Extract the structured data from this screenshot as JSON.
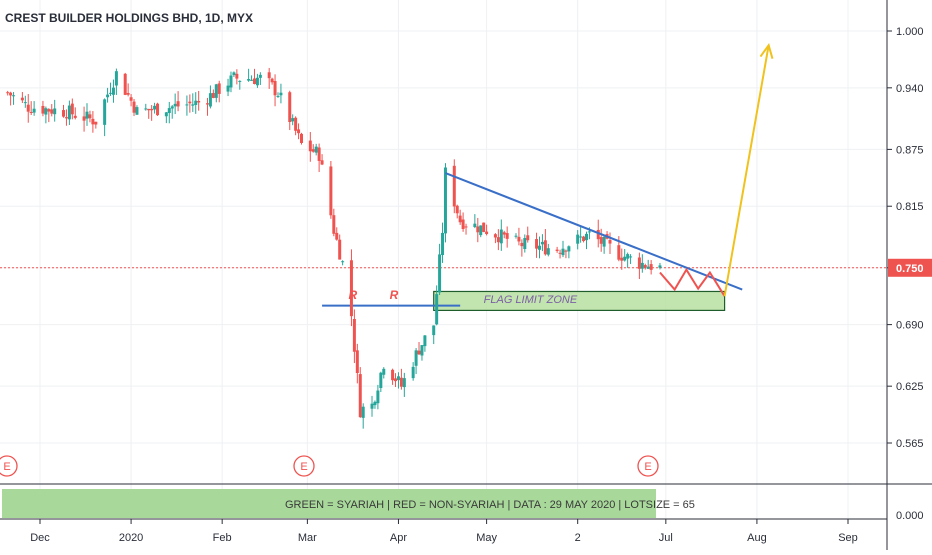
{
  "title": "CREST BUILDER HOLDINGS BHD, 1D, MYX",
  "price_axis": {
    "ticks": [
      "1.000",
      "0.940",
      "0.875",
      "0.815",
      "0.750",
      "0.690",
      "0.625",
      "0.565"
    ],
    "current_price": "0.750",
    "lower_pane_tick": "0.000"
  },
  "time_axis": {
    "ticks": [
      "Dec",
      "2020",
      "Feb",
      "Mar",
      "Apr",
      "May",
      "2",
      "Jul",
      "Aug",
      "Sep"
    ]
  },
  "annotations": {
    "flag_zone_label": "FLAG LIMIT ZONE",
    "r_markers": [
      "R",
      "R"
    ],
    "earnings_markers": [
      "E",
      "E",
      "E"
    ]
  },
  "legend_bar": {
    "text": "GREEN = SYARIAH  |  RED = NON-SYARIAH  | DATA : 29 MAY 2020  |  LOTSIZE = 65"
  },
  "colors": {
    "up": "#26a69a",
    "down": "#ef5350",
    "trendline": "#3a6fc8",
    "arrow": "#f0c21e",
    "flag_zone_fill": "#b7dfa0",
    "flag_zone_border": "#1f5e2c",
    "price_tag": "#ef5350",
    "legend_fill": "#a8d99a"
  },
  "chart_data": {
    "type": "candlestick",
    "x_ticks": [
      "Dec",
      "2020",
      "Feb",
      "Mar",
      "Apr",
      "May",
      "2",
      "Jul",
      "Aug",
      "Sep"
    ],
    "y_ticks": [
      1.0,
      0.94,
      0.875,
      0.815,
      0.75,
      0.69,
      0.625,
      0.565
    ],
    "ylim": [
      0.53,
      1.02
    ],
    "last_price": 0.75,
    "close_path": [
      {
        "x": "2019-11-20",
        "y": 0.935
      },
      {
        "x": "2019-11-27",
        "y": 0.92
      },
      {
        "x": "2019-12-10",
        "y": 0.915
      },
      {
        "x": "2019-12-20",
        "y": 0.905
      },
      {
        "x": "2019-12-27",
        "y": 0.955
      },
      {
        "x": "2020-01-03",
        "y": 0.915
      },
      {
        "x": "2020-01-15",
        "y": 0.92
      },
      {
        "x": "2020-01-25",
        "y": 0.925
      },
      {
        "x": "2020-02-05",
        "y": 0.95
      },
      {
        "x": "2020-02-15",
        "y": 0.95
      },
      {
        "x": "2020-02-20",
        "y": 0.935
      },
      {
        "x": "2020-02-28",
        "y": 0.88
      },
      {
        "x": "2020-03-05",
        "y": 0.87
      },
      {
        "x": "2020-03-10",
        "y": 0.79
      },
      {
        "x": "2020-03-13",
        "y": 0.755
      },
      {
        "x": "2020-03-16",
        "y": 0.7
      },
      {
        "x": "2020-03-19",
        "y": 0.6
      },
      {
        "x": "2020-03-23",
        "y": 0.605
      },
      {
        "x": "2020-03-27",
        "y": 0.65
      },
      {
        "x": "2020-04-02",
        "y": 0.625
      },
      {
        "x": "2020-04-08",
        "y": 0.665
      },
      {
        "x": "2020-04-13",
        "y": 0.69
      },
      {
        "x": "2020-04-16",
        "y": 0.79
      },
      {
        "x": "2020-04-17",
        "y": 0.85
      },
      {
        "x": "2020-04-22",
        "y": 0.8
      },
      {
        "x": "2020-05-01",
        "y": 0.79
      },
      {
        "x": "2020-05-12",
        "y": 0.775
      },
      {
        "x": "2020-05-25",
        "y": 0.77
      },
      {
        "x": "2020-06-05",
        "y": 0.785
      },
      {
        "x": "2020-06-15",
        "y": 0.765
      },
      {
        "x": "2020-06-22",
        "y": 0.755
      },
      {
        "x": "2020-06-29",
        "y": 0.75
      }
    ],
    "trendline": [
      {
        "x": "2020-04-17",
        "y": 0.85
      },
      {
        "x": "2020-07-27",
        "y": 0.727
      }
    ],
    "support_line": {
      "from": "2020-03-06",
      "to": "2020-04-22",
      "y": 0.71
    },
    "flag_limit_zone": {
      "from": "2020-04-13",
      "to": "2020-07-21",
      "y_low": 0.705,
      "y_high": 0.725
    },
    "projected_zigzag": [
      {
        "x": "2020-06-29",
        "y": 0.745
      },
      {
        "x": "2020-07-04",
        "y": 0.727
      },
      {
        "x": "2020-07-08",
        "y": 0.748
      },
      {
        "x": "2020-07-12",
        "y": 0.728
      },
      {
        "x": "2020-07-16",
        "y": 0.745
      },
      {
        "x": "2020-07-21",
        "y": 0.72
      }
    ],
    "projected_breakout": [
      {
        "x": "2020-07-21",
        "y": 0.72
      },
      {
        "x": "2020-08-05",
        "y": 0.985
      }
    ]
  }
}
